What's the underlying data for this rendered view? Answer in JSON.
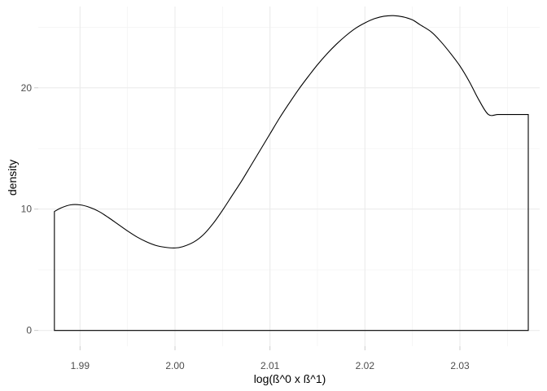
{
  "chart_data": {
    "type": "area",
    "title": "",
    "xlabel": "log(ß^0 x ß^1)",
    "ylabel": "density",
    "xlim": [
      1.9856,
      2.0384
    ],
    "ylim": [
      -1.3,
      26.7
    ],
    "x_ticks": [
      "1.99",
      "2.00",
      "2.01",
      "2.02",
      "2.03"
    ],
    "x_tick_values": [
      1.99,
      2.0,
      2.01,
      2.02,
      2.03
    ],
    "y_ticks": [
      "0",
      "10",
      "20"
    ],
    "y_tick_values": [
      0,
      10,
      20
    ],
    "grid": true,
    "legend": "none",
    "series": [
      {
        "x": [
          1.9873,
          1.988,
          1.989,
          1.99,
          1.991,
          1.992,
          1.993,
          1.994,
          1.995,
          1.996,
          1.997,
          1.998,
          1.999,
          2.0,
          2.0008,
          2.002,
          2.003,
          2.004,
          2.005,
          2.006,
          2.007,
          2.008,
          2.009,
          2.01,
          2.011,
          2.012,
          2.013,
          2.014,
          2.015,
          2.016,
          2.017,
          2.018,
          2.019,
          2.02,
          2.021,
          2.022,
          2.023,
          2.024,
          2.025,
          2.0258,
          2.027,
          2.028,
          2.029,
          2.03,
          2.031,
          2.032,
          2.033,
          2.034,
          2.035,
          2.036,
          2.0372
        ],
        "y": [
          9.8,
          10.1,
          10.35,
          10.35,
          10.15,
          9.8,
          9.3,
          8.75,
          8.2,
          7.7,
          7.3,
          7.0,
          6.85,
          6.8,
          6.9,
          7.3,
          7.9,
          8.8,
          9.9,
          11.1,
          12.3,
          13.6,
          14.9,
          16.2,
          17.5,
          18.7,
          19.85,
          20.9,
          21.9,
          22.8,
          23.6,
          24.3,
          24.9,
          25.35,
          25.7,
          25.9,
          25.95,
          25.85,
          25.6,
          25.2,
          24.6,
          23.8,
          22.85,
          21.8,
          20.5,
          19.0,
          17.8,
          17.8,
          17.8,
          17.8,
          17.8
        ]
      }
    ]
  }
}
